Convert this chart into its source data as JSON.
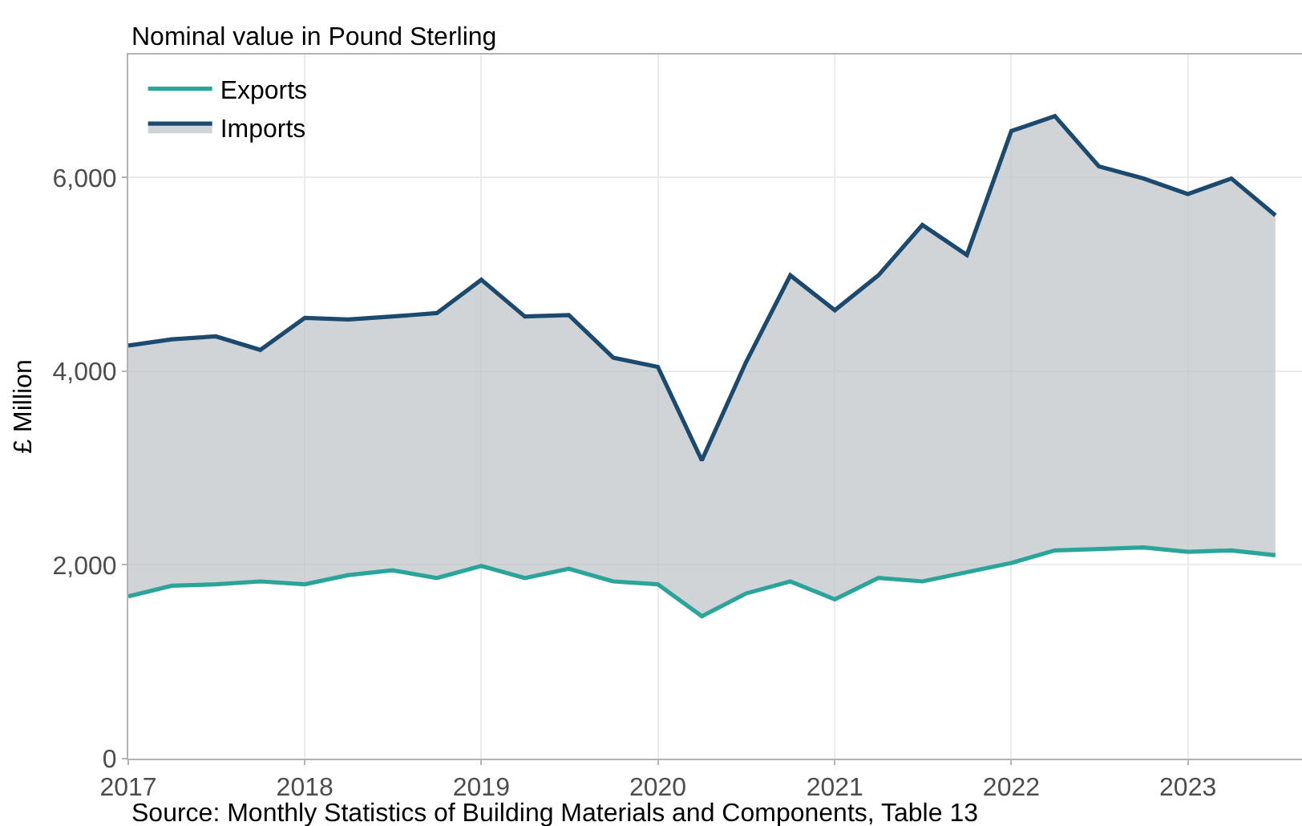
{
  "chart_data": {
    "type": "line",
    "subtitle": "Nominal value in Pound Sterling",
    "ylabel": "£ Million",
    "x": [
      "2017-01",
      "2017-04",
      "2017-07",
      "2017-10",
      "2018-01",
      "2018-04",
      "2018-07",
      "2018-10",
      "2019-01",
      "2019-04",
      "2019-07",
      "2019-10",
      "2020-01",
      "2020-04",
      "2020-07",
      "2020-10",
      "2021-01",
      "2021-04",
      "2021-07",
      "2021-10",
      "2022-01",
      "2022-04",
      "2022-07",
      "2022-10",
      "2023-01",
      "2023-04",
      "2023-07"
    ],
    "series": [
      {
        "name": "Imports",
        "type": "area",
        "color": "#1b4a6e",
        "values": [
          4265,
          4330,
          4360,
          4220,
          4550,
          4535,
          4565,
          4600,
          4945,
          4565,
          4580,
          4140,
          4045,
          3080,
          4090,
          4990,
          4630,
          4990,
          5510,
          5200,
          6480,
          6635,
          6115,
          5990,
          5830,
          5990,
          5610
        ]
      },
      {
        "name": "Exports",
        "color": "#2ba59a",
        "values": [
          1675,
          1785,
          1800,
          1830,
          1800,
          1895,
          1945,
          1865,
          1990,
          1865,
          1960,
          1830,
          1800,
          1470,
          1705,
          1830,
          1645,
          1865,
          1830,
          1925,
          2020,
          2150,
          2165,
          2180,
          2135,
          2150,
          2100
        ]
      }
    ],
    "xlim": [
      "2017-01-01",
      "2023-08-25"
    ],
    "xticks": [
      {
        "value": "2017-01-01",
        "label": "2017"
      },
      {
        "value": "2018-01-01",
        "label": "2018"
      },
      {
        "value": "2019-01-01",
        "label": "2019"
      },
      {
        "value": "2020-01-01",
        "label": "2020"
      },
      {
        "value": "2021-01-01",
        "label": "2021"
      },
      {
        "value": "2022-01-01",
        "label": "2022"
      },
      {
        "value": "2023-01-01",
        "label": "2023"
      }
    ],
    "ylim": [
      0,
      7270
    ],
    "yticks": [
      {
        "value": 0,
        "label": "0"
      },
      {
        "value": 2000,
        "label": "2,000"
      },
      {
        "value": 4000,
        "label": "4,000"
      },
      {
        "value": 6000,
        "label": "6,000"
      }
    ],
    "grid": true,
    "legend": "top left",
    "annotations": [
      "Source: Monthly Statistics of Building Materials and Components, Table 13"
    ]
  }
}
